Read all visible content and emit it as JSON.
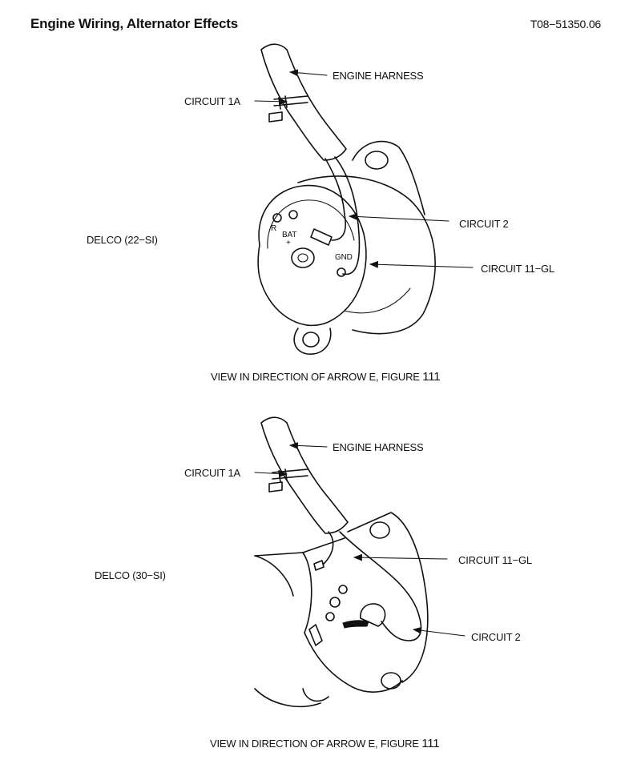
{
  "header": {
    "title": "Engine Wiring, Alternator Effects",
    "doc_number": "T08−51350.06"
  },
  "diagram_top": {
    "model": "DELCO (22−SI)",
    "labels": {
      "engine_harness": "ENGINE HARNESS",
      "circuit_1a": "CIRCUIT 1A",
      "circuit_2": "CIRCUIT 2",
      "circuit_11gl": "CIRCUIT 11−GL"
    },
    "terminal_marks": {
      "r": "R",
      "bat": "BAT",
      "plus": "+",
      "gnd": "GND"
    },
    "caption": "VIEW IN DIRECTION OF ARROW E, FIGURE",
    "figure_number": "111"
  },
  "diagram_bottom": {
    "model": "DELCO (30−SI)",
    "labels": {
      "engine_harness": "ENGINE HARNESS",
      "circuit_1a": "CIRCUIT 1A",
      "circuit_11gl": "CIRCUIT 11−GL",
      "circuit_2": "CIRCUIT 2"
    },
    "caption": "VIEW IN DIRECTION OF ARROW E, FIGURE",
    "figure_number": "111"
  }
}
